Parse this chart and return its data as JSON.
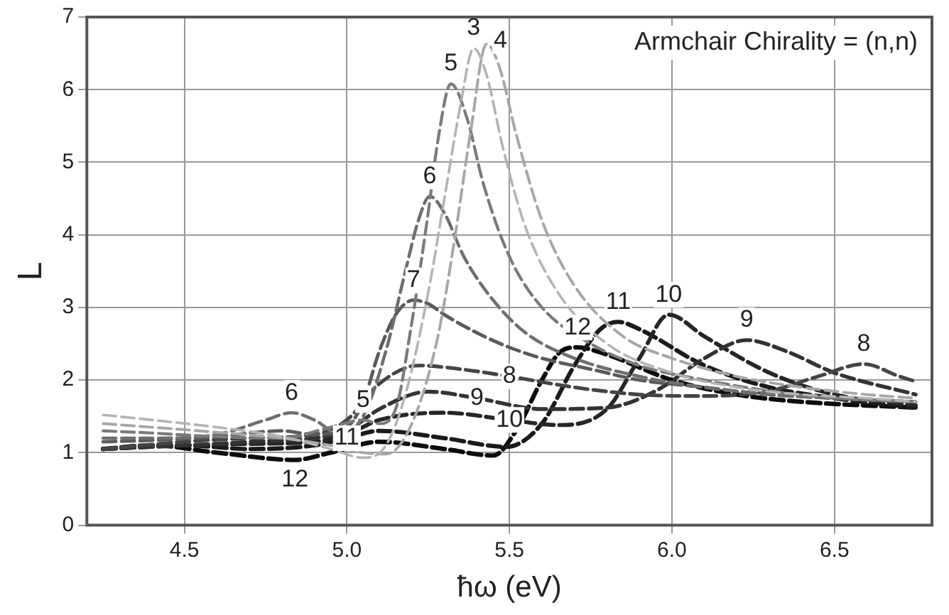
{
  "chart_data": {
    "type": "line",
    "xlabel": "ħω (eV)",
    "ylabel": "L",
    "xlim": [
      4.2,
      6.8
    ],
    "xticks": [
      4.5,
      {
        "value": 5,
        "label": "5.0"
      },
      5.5,
      {
        "value": 6,
        "label": "6.0"
      },
      6.5
    ],
    "ylim": [
      0,
      7
    ],
    "yticks": [
      0,
      1,
      2,
      3,
      4,
      5,
      6,
      7
    ],
    "grid": true,
    "legend": false,
    "marker": "none",
    "line_style": "dashed",
    "annotations": [
      "Armchair Chirality = (n,n)",
      {
        "text": "3",
        "x": 5.39,
        "y": 6.57
      },
      {
        "text": "4",
        "x": 5.43,
        "y": 6.63
      },
      {
        "text": "5",
        "x": 5.32,
        "y": 6.08
      },
      {
        "text": "6",
        "x": 5.255,
        "y": 4.53
      },
      {
        "text": "7",
        "x": 5.205,
        "y": 3.1
      },
      {
        "text": "6",
        "x": 4.83,
        "y": 1.55
      },
      {
        "text": "5",
        "x": 5.05,
        "y": 1.45
      },
      {
        "text": "8",
        "x": 5.5,
        "y": 2.05
      },
      {
        "text": "9",
        "x": 5.4,
        "y": 1.75
      },
      {
        "text": "10",
        "x": 5.5,
        "y": 1.45
      },
      {
        "text": "11",
        "x": 5.0,
        "y": 1.2
      },
      {
        "text": "12",
        "x": 4.84,
        "y": 0.9
      },
      {
        "text": "12",
        "x": 5.71,
        "y": 2.45
      },
      {
        "text": "11",
        "x": 5.835,
        "y": 2.8
      },
      {
        "text": "10",
        "x": 5.99,
        "y": 2.9
      },
      {
        "text": "9",
        "x": 6.23,
        "y": 2.55
      },
      {
        "text": "8",
        "x": 6.59,
        "y": 2.22
      }
    ],
    "series": [
      {
        "color": "#b3b3b3",
        "x": [
          4.25,
          4.4,
          4.6,
          4.8,
          4.95,
          5.05,
          5.12,
          5.18,
          5.25,
          5.3,
          5.35,
          5.39,
          5.43,
          5.48,
          5.55,
          5.65,
          5.8,
          6.0,
          6.2,
          6.4,
          6.6,
          6.75
        ],
        "values": [
          1.52,
          1.45,
          1.35,
          1.22,
          1.05,
          0.93,
          1.1,
          1.8,
          3.2,
          4.5,
          5.8,
          6.57,
          6.2,
          5.2,
          4.1,
          3.2,
          2.5,
          2.1,
          1.9,
          1.8,
          1.75,
          1.7
        ]
      },
      {
        "color": "#a6a6a6",
        "x": [
          4.25,
          4.4,
          4.6,
          4.8,
          4.95,
          5.05,
          5.12,
          5.2,
          5.28,
          5.33,
          5.38,
          5.43,
          5.47,
          5.52,
          5.6,
          5.7,
          5.85,
          6.0,
          6.2,
          6.4,
          6.6,
          6.75
        ],
        "values": [
          1.4,
          1.35,
          1.28,
          1.2,
          1.1,
          1.0,
          0.98,
          1.4,
          2.6,
          3.9,
          5.4,
          6.63,
          6.3,
          5.4,
          4.2,
          3.3,
          2.6,
          2.3,
          2.05,
          1.9,
          1.8,
          1.75
        ]
      },
      {
        "color": "#7a7a7a",
        "x": [
          4.25,
          4.4,
          4.6,
          4.8,
          4.95,
          5.05,
          5.1,
          5.15,
          5.2,
          5.25,
          5.28,
          5.32,
          5.37,
          5.42,
          5.5,
          5.6,
          5.75,
          5.9,
          6.1,
          6.3,
          6.5,
          6.75
        ],
        "values": [
          1.3,
          1.27,
          1.22,
          1.2,
          1.35,
          1.45,
          1.4,
          1.6,
          2.8,
          4.3,
          5.3,
          6.08,
          5.6,
          4.7,
          3.7,
          3.0,
          2.5,
          2.2,
          2.0,
          1.85,
          1.75,
          1.7
        ]
      },
      {
        "color": "#6e6e6e",
        "x": [
          4.25,
          4.4,
          4.6,
          4.75,
          4.83,
          4.9,
          4.98,
          5.05,
          5.12,
          5.18,
          5.22,
          5.255,
          5.3,
          5.36,
          5.45,
          5.55,
          5.7,
          5.9,
          6.1,
          6.3,
          6.5,
          6.75
        ],
        "values": [
          1.2,
          1.2,
          1.25,
          1.45,
          1.55,
          1.45,
          1.25,
          1.5,
          2.4,
          3.5,
          4.2,
          4.53,
          4.3,
          3.7,
          3.1,
          2.65,
          2.3,
          2.05,
          1.9,
          1.8,
          1.75,
          1.7
        ]
      },
      {
        "color": "#5a5a5a",
        "x": [
          4.25,
          4.4,
          4.6,
          4.8,
          4.9,
          5.0,
          5.05,
          5.1,
          5.15,
          5.205,
          5.25,
          5.3,
          5.4,
          5.5,
          5.6,
          5.75,
          5.9,
          6.1,
          6.3,
          6.5,
          6.75
        ],
        "values": [
          1.15,
          1.17,
          1.22,
          1.3,
          1.25,
          1.35,
          1.7,
          2.4,
          2.9,
          3.1,
          3.05,
          2.9,
          2.65,
          2.45,
          2.3,
          2.15,
          2.0,
          1.9,
          1.8,
          1.75,
          1.7
        ]
      },
      {
        "color": "#444444",
        "x": [
          4.25,
          4.5,
          4.7,
          4.9,
          5.0,
          5.1,
          5.22,
          5.35,
          5.5,
          5.7,
          5.9,
          6.1,
          6.3,
          6.45,
          6.59,
          6.7,
          6.75
        ],
        "values": [
          1.05,
          1.15,
          1.2,
          1.25,
          1.45,
          1.95,
          2.2,
          2.15,
          2.05,
          1.9,
          1.8,
          1.78,
          1.85,
          2.05,
          2.22,
          2.05,
          1.98
        ]
      },
      {
        "color": "#333333",
        "x": [
          4.25,
          4.5,
          4.7,
          4.9,
          5.0,
          5.1,
          5.25,
          5.4,
          5.6,
          5.8,
          5.95,
          6.1,
          6.23,
          6.35,
          6.5,
          6.75
        ],
        "values": [
          1.05,
          1.1,
          1.15,
          1.2,
          1.3,
          1.6,
          1.84,
          1.75,
          1.6,
          1.62,
          1.85,
          2.3,
          2.55,
          2.4,
          2.1,
          1.8
        ]
      },
      {
        "color": "#262626",
        "x": [
          4.25,
          4.5,
          4.7,
          4.9,
          5.0,
          5.1,
          5.3,
          5.5,
          5.65,
          5.8,
          5.9,
          5.99,
          6.1,
          6.3,
          6.5,
          6.75
        ],
        "values": [
          1.05,
          1.1,
          1.12,
          1.15,
          1.25,
          1.45,
          1.55,
          1.45,
          1.38,
          1.6,
          2.3,
          2.9,
          2.6,
          2.1,
          1.8,
          1.65
        ]
      },
      {
        "color": "#1a1a1a",
        "x": [
          4.25,
          4.5,
          4.7,
          4.9,
          5.0,
          5.1,
          5.3,
          5.49,
          5.6,
          5.7,
          5.78,
          5.835,
          5.9,
          6.1,
          6.3,
          6.5,
          6.75
        ],
        "values": [
          1.05,
          1.1,
          1.05,
          1.1,
          1.2,
          1.3,
          1.2,
          1.08,
          1.4,
          2.2,
          2.7,
          2.8,
          2.7,
          2.2,
          1.9,
          1.75,
          1.62
        ]
      },
      {
        "color": "#0d0d0d",
        "x": [
          4.25,
          4.4,
          4.6,
          4.84,
          4.95,
          5.1,
          5.3,
          5.45,
          5.52,
          5.6,
          5.66,
          5.71,
          5.8,
          6.0,
          6.2,
          6.4,
          6.75
        ],
        "values": [
          1.05,
          1.1,
          1.0,
          0.9,
          1.0,
          1.15,
          1.05,
          0.96,
          1.3,
          2.0,
          2.4,
          2.45,
          2.35,
          2.0,
          1.8,
          1.7,
          1.62
        ]
      }
    ]
  }
}
